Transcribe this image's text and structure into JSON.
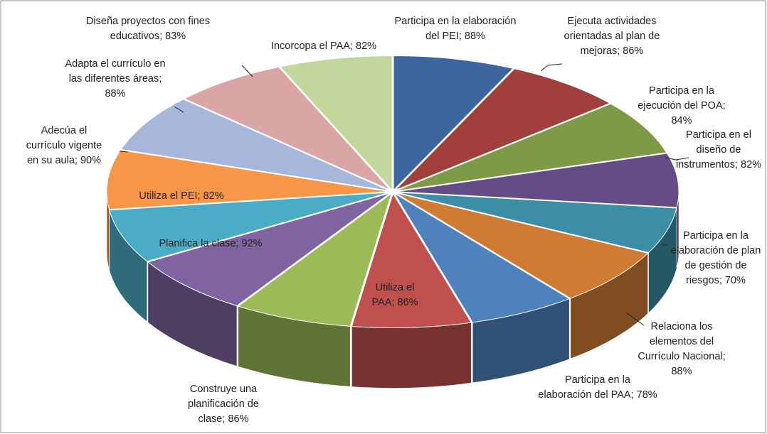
{
  "chart_data": {
    "type": "pie3d",
    "categories": [
      "Participa en la elaboración del PEI;",
      "Ejecuta actividades orientadas al plan de mejoras;",
      "Participa en la ejecución del POA;",
      "Participa en el diseño de instrumentos;",
      "Participa en la elaboración de plan de gestión de riesgos;",
      "Relaciona los elementos  del Currículo Nacional;",
      "Participa en la elaboración del PAA;",
      "Utiliza el PAA;",
      "Construye una planificación de clase;",
      "Planifica la clase;",
      "Utiliza el PEI;",
      "Adecúa el currículo vigente en su aula;",
      "Adapta el currículo en las diferentes áreas;",
      "Diseña proyectos con fines educativos;",
      "Incorcopa el PAA;"
    ],
    "values": [
      88,
      86,
      84,
      82,
      70,
      88,
      78,
      86,
      86,
      92,
      82,
      90,
      88,
      83,
      82
    ],
    "value_labels": [
      "88%",
      "86%",
      "84%",
      "82%",
      "70%",
      "88%",
      "78%",
      "86%",
      "86%",
      "92%",
      "82%",
      "90%",
      "88%",
      "83%",
      "82%"
    ],
    "colors": [
      "#3d659e",
      "#a13f3c",
      "#7d9a46",
      "#644d87",
      "#3b8ea5",
      "#d07b33",
      "#4f81bd",
      "#c0504d",
      "#9bbb59",
      "#8064a2",
      "#4bacc6",
      "#f79646",
      "#a6b7db",
      "#d9a6a5",
      "#c3d69b"
    ]
  }
}
